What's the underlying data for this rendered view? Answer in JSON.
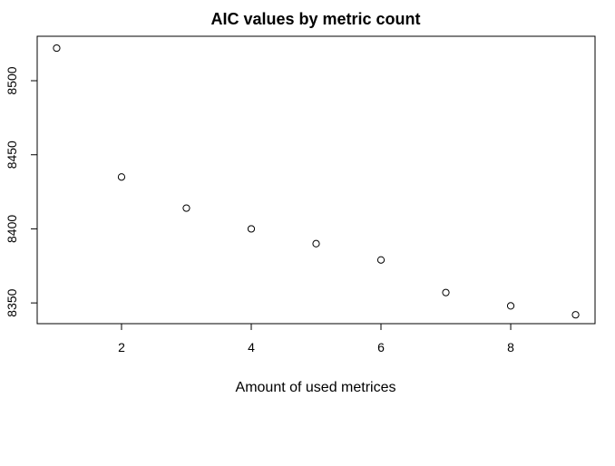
{
  "chart_data": {
    "type": "scatter",
    "title": "AIC values by metric count",
    "xlabel": "Amount of used metrices",
    "ylabel": "",
    "x": [
      1,
      2,
      3,
      4,
      5,
      6,
      7,
      8,
      9
    ],
    "y": [
      8522,
      8435,
      8414,
      8400,
      8390,
      8379,
      8357,
      8348,
      8342
    ],
    "xlim": [
      0.7,
      9.3
    ],
    "ylim": [
      8336,
      8530
    ],
    "xticks": [
      2,
      4,
      6,
      8
    ],
    "yticks": [
      8350,
      8400,
      8450,
      8500
    ],
    "grid": false,
    "legend": "none",
    "marker": "open-circle",
    "colors": {
      "axis": "#000000",
      "marker": "#000000",
      "background": "#ffffff"
    }
  }
}
